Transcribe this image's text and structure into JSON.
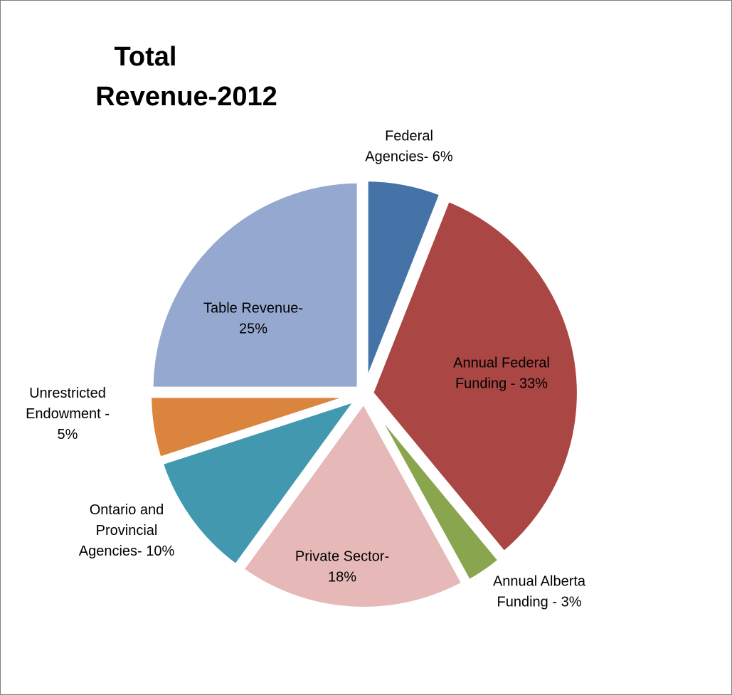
{
  "chart_data": {
    "type": "pie",
    "title_lines": [
      "Total",
      "Revenue-2012"
    ],
    "legend": "none",
    "unit": "%",
    "slices": [
      {
        "name": "Federal Agencies",
        "value": 6,
        "color": "#4572A7",
        "label_lines": [
          "Federal",
          "Agencies- 6%"
        ]
      },
      {
        "name": "Annual Federal Funding",
        "value": 33,
        "color": "#AA4643",
        "label_lines": [
          "Annual Federal",
          "Funding - 33%"
        ]
      },
      {
        "name": "Annual Alberta Funding",
        "value": 3,
        "color": "#89A54E",
        "label_lines": [
          "Annual Alberta",
          "Funding - 3%"
        ]
      },
      {
        "name": "Private Sector",
        "value": 18,
        "color": "#E6B9B8",
        "label_lines": [
          "Private Sector-",
          "18%"
        ]
      },
      {
        "name": "Ontario and Provincial Agencies",
        "value": 10,
        "color": "#4198AF",
        "label_lines": [
          "Ontario and",
          "Provincial",
          "Agencies- 10%"
        ]
      },
      {
        "name": "Unrestricted Endowment",
        "value": 5,
        "color": "#DB843D",
        "label_lines": [
          "Unrestricted",
          "Endowment  -",
          "5%"
        ]
      },
      {
        "name": "Table Revenue",
        "value": 25,
        "color": "#95A9D0",
        "label_lines": [
          "Table Revenue-",
          "25%"
        ]
      }
    ]
  }
}
